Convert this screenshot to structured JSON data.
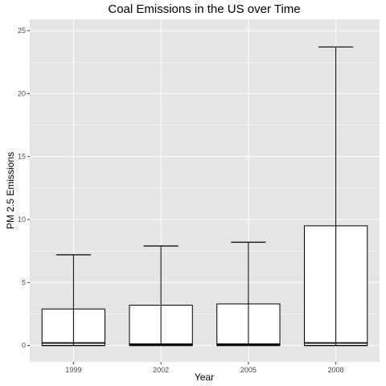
{
  "chart_data": {
    "type": "boxplot",
    "title": "Coal Emissions in the US over Time",
    "xlabel": "Year",
    "ylabel": "PM 2.5 Emissions",
    "categories": [
      "1999",
      "2002",
      "2005",
      "2008"
    ],
    "boxes": [
      {
        "x": "1999",
        "lower_whisker": 0.0,
        "q1": 0.0,
        "median": 0.2,
        "q3": 2.9,
        "upper_whisker": 7.2
      },
      {
        "x": "2002",
        "lower_whisker": 0.0,
        "q1": 0.0,
        "median": 0.1,
        "q3": 3.2,
        "upper_whisker": 7.9
      },
      {
        "x": "2005",
        "lower_whisker": 0.0,
        "q1": 0.0,
        "median": 0.1,
        "q3": 3.3,
        "upper_whisker": 8.2
      },
      {
        "x": "2008",
        "lower_whisker": 0.0,
        "q1": 0.0,
        "median": 0.2,
        "q3": 9.5,
        "upper_whisker": 23.7
      }
    ],
    "yticks": [
      0,
      5,
      10,
      15,
      20,
      25
    ],
    "ylim": [
      -1.3,
      25.9
    ],
    "grid": true,
    "colors": {
      "panel": "#e5e5e5",
      "grid": "#ffffff",
      "box_fill": "#ffffff",
      "box_stroke": "#000000"
    }
  }
}
